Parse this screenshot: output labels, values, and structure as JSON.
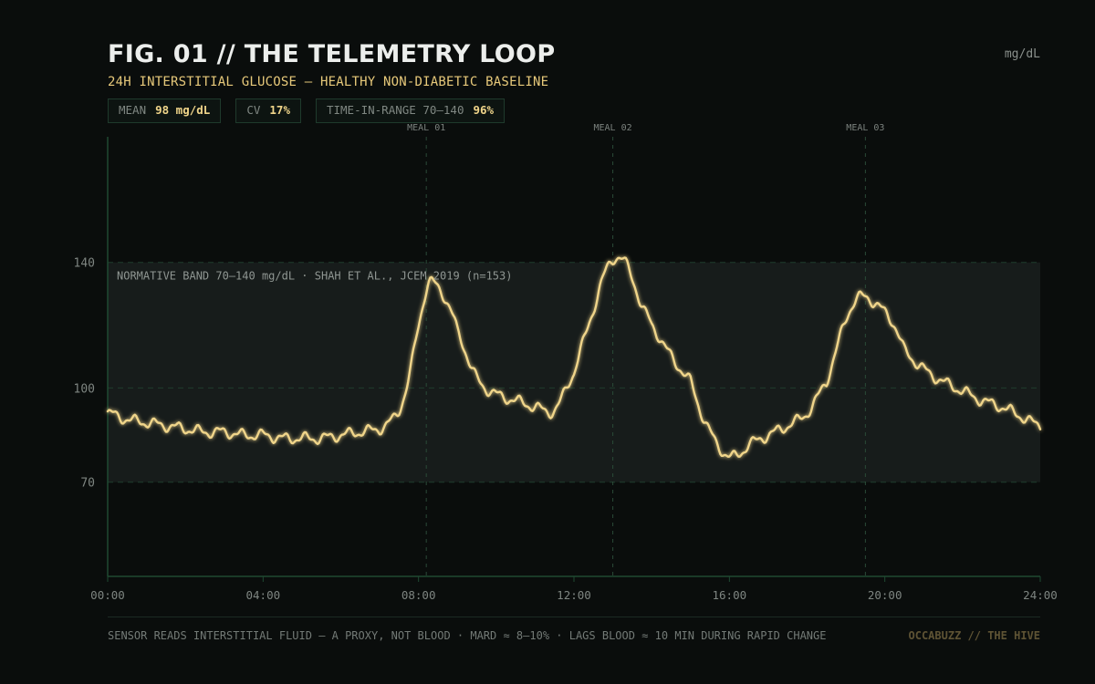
{
  "header": {
    "title": "FIG. 01 // THE TELEMETRY LOOP",
    "subtitle": "24H INTERSTITIAL GLUCOSE — HEALTHY NON-DIABETIC BASELINE",
    "unit": "mg/dL"
  },
  "stats": [
    {
      "label": "MEAN",
      "value": "98 mg/dL"
    },
    {
      "label": "CV",
      "value": "17%"
    },
    {
      "label": "TIME-IN-RANGE 70–140",
      "value": "96%"
    }
  ],
  "footer": {
    "note": "SENSOR READS INTERSTITIAL FLUID — A PROXY, NOT BLOOD  ·  MARD ≈ 8–10%  ·  LAGS BLOOD ≈ 10 MIN DURING RAPID CHANGE",
    "brand": "OCCABUZZ // THE HIVE"
  },
  "colors": {
    "line": "#f0d58a",
    "band": "#171c1b",
    "axis": "#1f4a32",
    "accent": "#e7c97a"
  },
  "chart_data": {
    "type": "line",
    "title": "FIG. 01 // THE TELEMETRY LOOP",
    "subtitle": "24H INTERSTITIAL GLUCOSE — HEALTHY NON-DIABETIC BASELINE",
    "ylabel": "mg/dL",
    "xlim": [
      0,
      24
    ],
    "ylim": [
      40,
      180
    ],
    "x_ticks": [
      {
        "value": 0,
        "label": "00:00"
      },
      {
        "value": 4,
        "label": "04:00"
      },
      {
        "value": 8,
        "label": "08:00"
      },
      {
        "value": 12,
        "label": "12:00"
      },
      {
        "value": 16,
        "label": "16:00"
      },
      {
        "value": 20,
        "label": "20:00"
      },
      {
        "value": 24,
        "label": "24:00"
      }
    ],
    "y_ticks": [
      70,
      100,
      140
    ],
    "band": {
      "low": 70,
      "high": 140,
      "label": "NORMATIVE BAND 70–140 mg/dL · SHAH ET AL., JCEM 2019 (n=153)"
    },
    "events": [
      {
        "x": 8.2,
        "label": "MEAL 01"
      },
      {
        "x": 13.0,
        "label": "MEAL 02"
      },
      {
        "x": 19.5,
        "label": "MEAL 03"
      }
    ],
    "series": [
      {
        "x": [
          0,
          0.5,
          1,
          1.5,
          2,
          2.5,
          3,
          3.5,
          4,
          4.5,
          5,
          5.5,
          6,
          6.5,
          7,
          7.25,
          7.5,
          7.75,
          8,
          8.25,
          8.5,
          8.75,
          9,
          9.5,
          10,
          10.5,
          11,
          11.5,
          12,
          12.25,
          12.5,
          12.75,
          13,
          13.25,
          13.5,
          13.75,
          14,
          14.5,
          15,
          15.25,
          15.5,
          15.75,
          16,
          16.25,
          16.5,
          17,
          17.5,
          18,
          18.5,
          18.75,
          19,
          19.25,
          19.5,
          19.75,
          20,
          20.25,
          20.5,
          21,
          21.5,
          22,
          22.5,
          23,
          23.5,
          24
        ],
        "values": [
          92,
          90,
          89,
          88,
          87,
          86,
          86,
          85,
          85,
          84,
          84,
          84,
          85,
          86,
          87,
          89,
          93,
          103,
          120,
          133,
          132,
          127,
          118,
          103,
          98,
          96,
          94,
          93,
          105,
          115,
          125,
          135,
          141,
          141,
          135,
          126,
          120,
          110,
          102,
          93,
          86,
          81,
          78,
          79,
          82,
          85,
          88,
          92,
          102,
          112,
          122,
          128,
          129,
          127,
          124,
          120,
          112,
          106,
          102,
          99,
          96,
          94,
          91,
          88
        ]
      }
    ]
  }
}
